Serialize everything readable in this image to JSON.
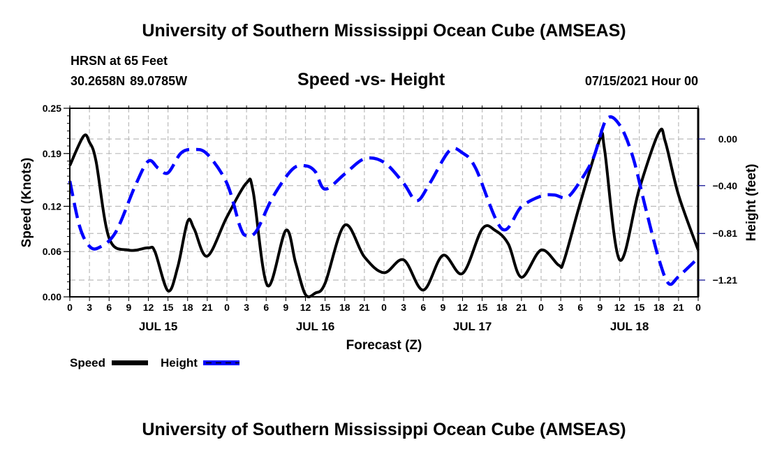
{
  "header": {
    "top_title": "University of Southern Mississippi Ocean Cube (AMSEAS)",
    "station": "HRSN at 65 Feet",
    "coords": "30.2658N  89.0785W",
    "date": "07/15/2021 Hour 00",
    "bottom_title": "University of Southern Mississippi Ocean Cube (AMSEAS)"
  },
  "chart_data": {
    "type": "line",
    "title": "Speed -vs- Height",
    "xlabel": "Forecast (Z)",
    "ylabel": "Speed (Knots)",
    "y2label": "Height (feet)",
    "xlim_hours": [
      0,
      96
    ],
    "ylim": [
      0,
      0.25
    ],
    "y2lim": [
      -1.41,
      0.22
    ],
    "grid": true,
    "yticks": [
      0.0,
      0.06,
      0.12,
      0.19,
      0.25
    ],
    "ytick_labels": [
      "0.00",
      "0.06",
      "0.12",
      "0.19",
      "0.25"
    ],
    "y2ticks": [
      0.0,
      -0.4,
      -0.81,
      -1.21
    ],
    "y2tick_labels": [
      "0.00",
      "−0.40",
      "−0.81",
      "−1.21"
    ],
    "xtick_labels": [
      "0",
      "3",
      "6",
      "9",
      "12",
      "15",
      "18",
      "21",
      "0",
      "3",
      "6",
      "9",
      "12",
      "15",
      "18",
      "21",
      "0",
      "3",
      "6",
      "9",
      "12",
      "15",
      "18",
      "21",
      "0",
      "3",
      "6",
      "9",
      "12",
      "15",
      "18",
      "21",
      "0"
    ],
    "day_labels": [
      {
        "label": "JUL 15",
        "hour": 13.5
      },
      {
        "label": "JUL 16",
        "hour": 37.5
      },
      {
        "label": "JUL 17",
        "hour": 61.5
      },
      {
        "label": "JUL 18",
        "hour": 85.5
      }
    ],
    "legend": [
      {
        "name": "Speed",
        "style": "solid",
        "color": "#000000"
      },
      {
        "name": "Height",
        "style": "dashed",
        "color": "#0000ff"
      }
    ],
    "series": [
      {
        "name": "Speed",
        "axis": "left",
        "color": "#000000",
        "hours": [
          0,
          2.1,
          3,
          4,
          6,
          9,
          12,
          13,
          15,
          16.5,
          18,
          19,
          21,
          24,
          27,
          28,
          30.2,
          33,
          34.5,
          36,
          37.5,
          39,
          42,
          45,
          48,
          51,
          54,
          57,
          60,
          63,
          65,
          67,
          69,
          72,
          74.7,
          75.5,
          78,
          81,
          81.7,
          84,
          87,
          90,
          91,
          93,
          96
        ],
        "values": [
          0.174,
          0.213,
          0.205,
          0.18,
          0.078,
          0.062,
          0.065,
          0.06,
          0.008,
          0.04,
          0.1,
          0.09,
          0.054,
          0.106,
          0.151,
          0.14,
          0.015,
          0.088,
          0.045,
          0.003,
          0.005,
          0.018,
          0.095,
          0.053,
          0.032,
          0.049,
          0.009,
          0.055,
          0.031,
          0.09,
          0.088,
          0.07,
          0.026,
          0.062,
          0.042,
          0.048,
          0.125,
          0.209,
          0.195,
          0.049,
          0.143,
          0.218,
          0.205,
          0.135,
          0.062
        ]
      },
      {
        "name": "Height",
        "axis": "right",
        "color": "#0000ff",
        "hours": [
          0,
          1.5,
          3,
          4.5,
          7,
          10,
          12,
          13.5,
          15,
          17,
          19,
          21,
          24,
          26,
          27,
          28.5,
          31,
          34,
          36,
          37.5,
          39,
          42,
          45,
          48,
          51,
          53,
          55,
          58,
          60,
          62,
          66,
          69,
          72,
          74,
          76,
          78,
          80,
          82,
          84,
          86,
          88,
          90,
          91.5,
          93,
          96
        ],
        "values": [
          -0.36,
          -0.75,
          -0.92,
          -0.93,
          -0.8,
          -0.4,
          -0.19,
          -0.25,
          -0.29,
          -0.12,
          -0.09,
          -0.13,
          -0.38,
          -0.75,
          -0.83,
          -0.79,
          -0.5,
          -0.26,
          -0.23,
          -0.28,
          -0.43,
          -0.3,
          -0.17,
          -0.2,
          -0.38,
          -0.53,
          -0.38,
          -0.1,
          -0.12,
          -0.25,
          -0.77,
          -0.58,
          -0.49,
          -0.48,
          -0.5,
          -0.36,
          -0.16,
          0.17,
          0.12,
          -0.15,
          -0.6,
          -1.03,
          -1.24,
          -1.18,
          -1.02
        ]
      }
    ]
  }
}
